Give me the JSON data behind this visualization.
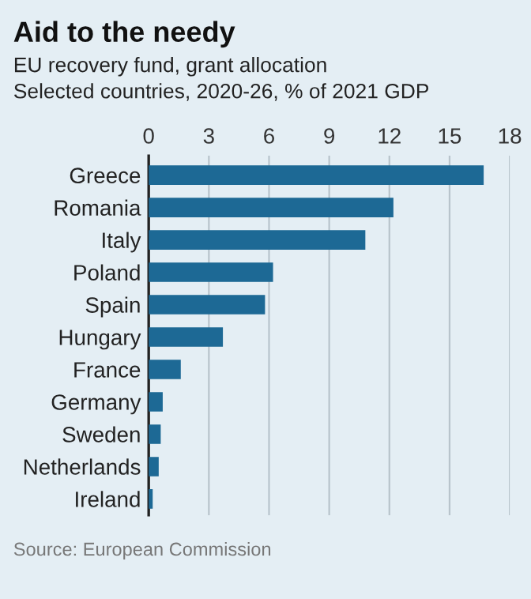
{
  "chart_data": {
    "type": "bar",
    "orientation": "horizontal",
    "title": "Aid to the needy",
    "subtitle": "EU recovery fund, grant allocation\nSelected countries, 2020-26, % of 2021 GDP",
    "categories": [
      "Greece",
      "Romania",
      "Italy",
      "Poland",
      "Spain",
      "Hungary",
      "France",
      "Germany",
      "Sweden",
      "Netherlands",
      "Ireland"
    ],
    "values": [
      16.7,
      12.2,
      10.8,
      6.2,
      5.8,
      3.7,
      1.6,
      0.7,
      0.6,
      0.5,
      0.2
    ],
    "color": "#1d6995",
    "xlim": [
      0,
      18
    ],
    "xticks": [
      0,
      3,
      6,
      9,
      12,
      15,
      18
    ],
    "grid": "x",
    "annotations": [
      "Source: European Commission"
    ]
  }
}
